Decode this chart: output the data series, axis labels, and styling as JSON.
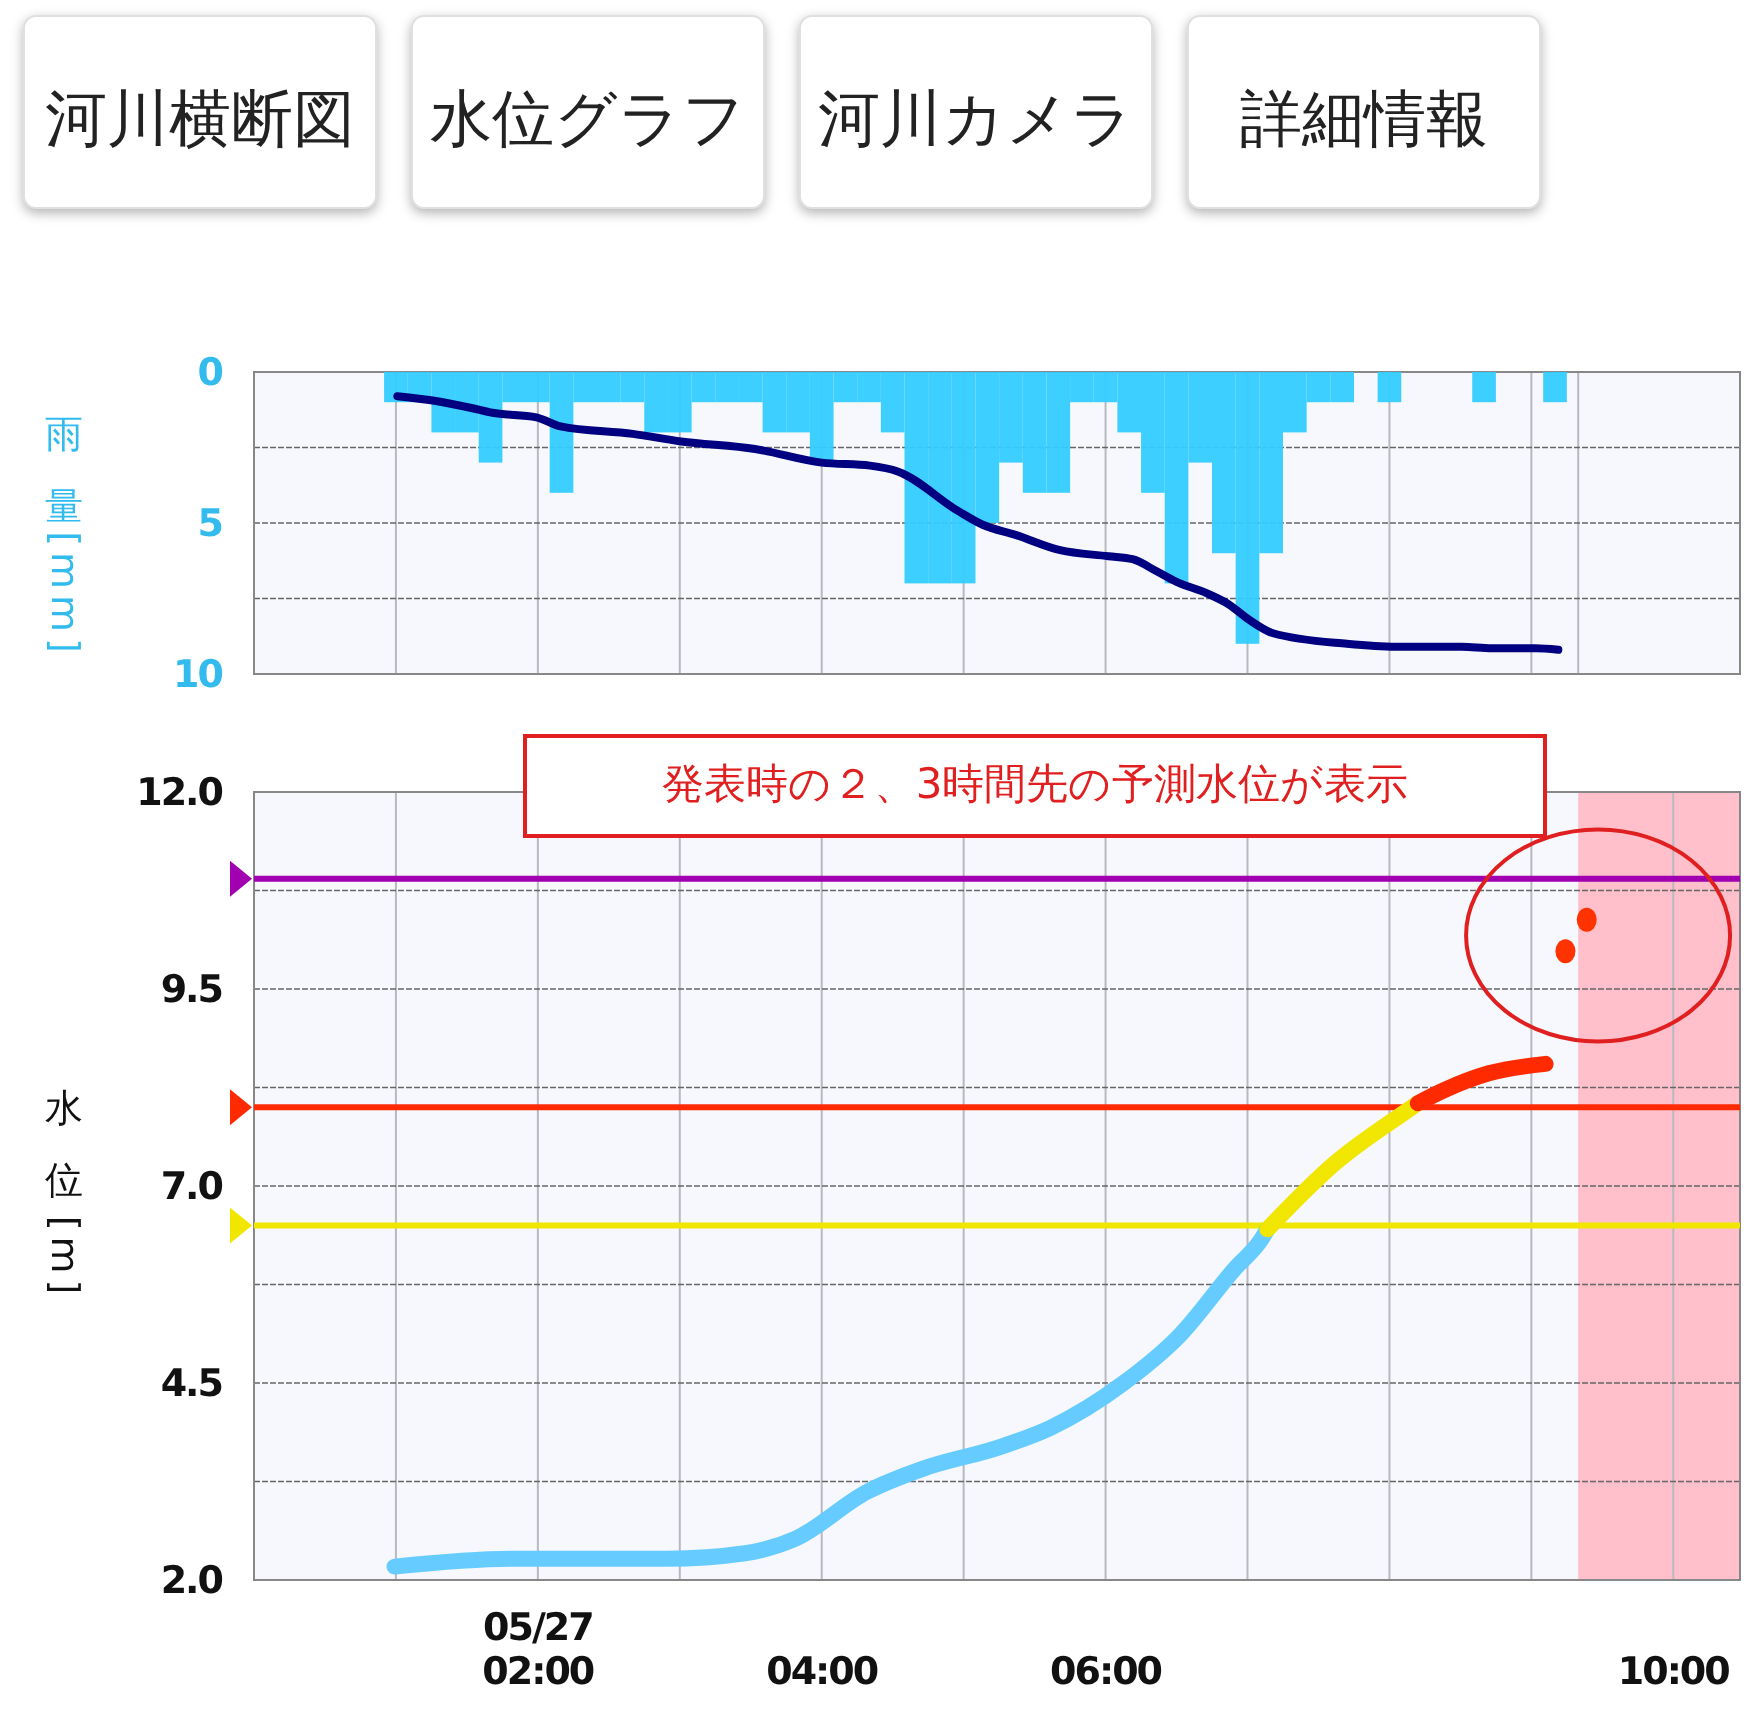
{
  "chart_data": [
    {
      "type": "other",
      "annotations": [
        "河川横断図",
        "水位グラフ",
        "河川カメラ",
        "詳細情報"
      ]
    },
    {
      "type": "bar",
      "ylabel": "雨量 [mm]",
      "xlim": [
        0,
        10.47
      ],
      "ylim": [
        10,
        0
      ],
      "grid": true,
      "tick_labels": "y",
      "xticks": [
        {
          "value": 1,
          "label": null
        },
        {
          "value": 2,
          "label": null
        },
        {
          "value": 3,
          "label": null
        },
        {
          "value": 4,
          "label": null
        },
        {
          "value": 5,
          "label": null
        },
        {
          "value": 6,
          "label": null
        },
        {
          "value": 7,
          "label": null
        },
        {
          "value": 8,
          "label": null
        },
        {
          "value": 9,
          "label": null
        },
        {
          "value": 9.33,
          "label": null
        }
      ],
      "yticks": [
        0,
        {
          "value": 2.5,
          "label": null
        },
        5,
        {
          "value": 7.5,
          "label": null
        },
        10
      ],
      "series": [
        {
          "type": "bar",
          "color": "#33ccff",
          "x": [
            1,
            1.1667,
            1.3333,
            1.5,
            1.6667,
            1.8333,
            2,
            2.1667,
            2.3333,
            2.5,
            2.6667,
            2.8333,
            3,
            3.1667,
            3.3333,
            3.5,
            3.6667,
            3.8333,
            4,
            4.1667,
            4.3333,
            4.5,
            4.6667,
            4.8333,
            5,
            5.1667,
            5.3333,
            5.5,
            5.6667,
            5.8333,
            6,
            6.1667,
            6.3333,
            6.5,
            6.6667,
            6.8333,
            7,
            7.1667,
            7.3333,
            7.5,
            7.6667,
            7.8333,
            8,
            8.1667,
            8.3333,
            8.5,
            8.6667,
            8.8333,
            9,
            9.1667
          ],
          "values": [
            1,
            1,
            2,
            2,
            3,
            1,
            1,
            4,
            1,
            1,
            1,
            2,
            2,
            1,
            1,
            1,
            2,
            2,
            3,
            1,
            1,
            2,
            7,
            7,
            7,
            5,
            3,
            4,
            4,
            1,
            1,
            2,
            4,
            7,
            3,
            6,
            9,
            6,
            2,
            1,
            1,
            0,
            1,
            0,
            0,
            0,
            1,
            0,
            0,
            1
          ]
        },
        {
          "type": "line",
          "color": "#000080",
          "x": [
            1.01,
            1.27,
            1.54,
            1.68,
            1.99,
            2.16,
            2.67,
            3.01,
            3.53,
            4.0,
            4.34,
            4.54,
            4.96,
            5.13,
            5.37,
            5.68,
            6.02,
            6.19,
            6.36,
            6.5,
            6.7,
            6.87,
            7.01,
            7.18,
            7.7,
            8.04,
            8.51,
            8.72,
            9.03,
            9.19
          ],
          "values": [
            0.8,
            0.95,
            1.2,
            1.35,
            1.5,
            1.8,
            2.05,
            2.3,
            2.55,
            3.0,
            3.1,
            3.3,
            4.6,
            5.05,
            5.4,
            5.9,
            6.1,
            6.2,
            6.6,
            6.95,
            7.3,
            7.7,
            8.2,
            8.65,
            9.0,
            9.1,
            9.1,
            9.15,
            9.15,
            9.2
          ]
        }
      ]
    },
    {
      "type": "line",
      "ylabel": "水位 [m]",
      "xlim": [
        0,
        10.47
      ],
      "ylim": [
        2,
        12
      ],
      "grid": true,
      "xticks": [
        {
          "value": 1,
          "label": null
        },
        {
          "value": 2,
          "label": "05/27\n02:00"
        },
        {
          "value": 3,
          "label": null
        },
        {
          "value": 4,
          "label": "04:00"
        },
        {
          "value": 5,
          "label": null
        },
        {
          "value": 6,
          "label": "06:00"
        },
        {
          "value": 7,
          "label": null
        },
        {
          "value": 8,
          "label": null
        },
        {
          "value": 9,
          "label": null
        },
        {
          "value": 10,
          "label": "10:00"
        }
      ],
      "yticks": [
        {
          "value": 2,
          "label": "2.0"
        },
        {
          "value": 3.25,
          "label": null
        },
        4.5,
        {
          "value": 5.75,
          "label": null
        },
        {
          "value": 7,
          "label": "7.0"
        },
        {
          "value": 8.25,
          "label": null
        },
        9.5,
        {
          "value": 10.75,
          "label": null
        },
        {
          "value": 12,
          "label": "12.0"
        }
      ],
      "ref_lines": [
        {
          "axis": "y",
          "value": 10.9,
          "color": "#a000b0"
        },
        {
          "axis": "y",
          "value": 8.0,
          "color": "#ff2a00"
        },
        {
          "axis": "y",
          "value": 6.5,
          "color": "#f0e600"
        }
      ],
      "bands": [
        {
          "axis": "x",
          "from": 9.33,
          "to": 10.47,
          "color": "#ffc0cb"
        }
      ],
      "annotations": [
        "発表時の２、3時間先の予測水位が表示"
      ],
      "series": [
        {
          "type": "line",
          "color": "#66ccff",
          "x": [
            0.99,
            1.81,
            2.91,
            3.46,
            3.81,
            4.32,
            4.71,
            5.26,
            5.61,
            6.12,
            6.52,
            6.91,
            7.1,
            7.14
          ],
          "values": [
            2.17,
            2.27,
            2.27,
            2.34,
            2.52,
            3.12,
            3.41,
            3.69,
            3.93,
            4.49,
            5.1,
            5.95,
            6.33,
            6.45
          ]
        },
        {
          "type": "line",
          "color": "#f0e600",
          "x": [
            7.14,
            7.61,
            8.12,
            8.2
          ],
          "values": [
            6.45,
            7.28,
            7.95,
            8.05
          ]
        },
        {
          "type": "line",
          "color": "#ff2a00",
          "x": [
            8.2,
            8.39,
            8.7,
            9.1
          ],
          "values": [
            8.05,
            8.22,
            8.43,
            8.55
          ]
        },
        {
          "type": "scatter",
          "marker": "circle",
          "color": "#ff3300",
          "x": [
            9.24,
            9.39
          ],
          "values": [
            9.98,
            10.38
          ]
        }
      ]
    }
  ]
}
